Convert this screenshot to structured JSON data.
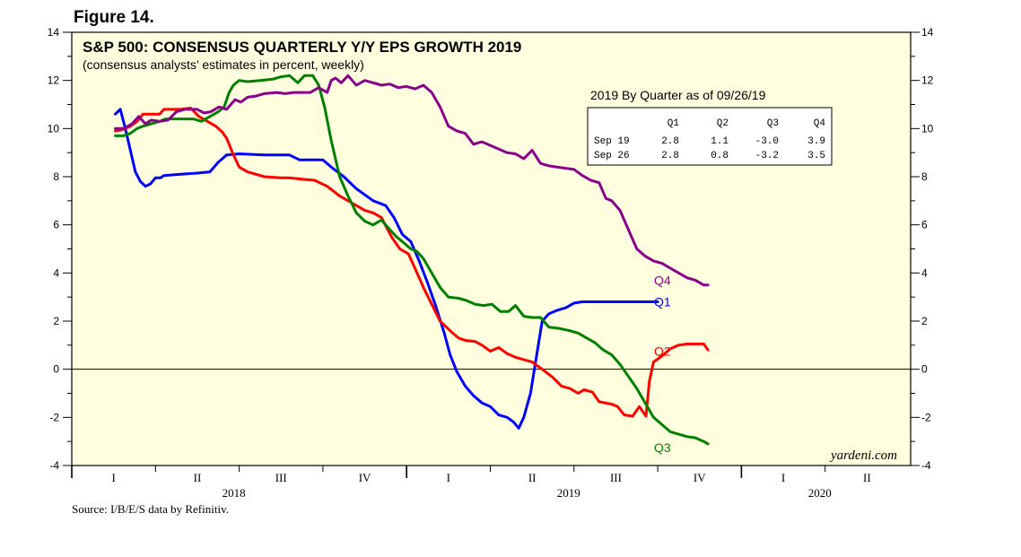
{
  "figure_label": "Figure 14.",
  "source": "Source: I/B/E/S data by Refinitiv.",
  "watermark": "yardeni.com",
  "colors": {
    "plot_bg": "#FFFFE0",
    "q1": "#0000FF",
    "q2": "#FF0000",
    "q3": "#008000",
    "q4": "#8B008B"
  },
  "chart_data": {
    "type": "line",
    "title": "S&P 500: CONSENSUS QUARTERLY Y/Y EPS GROWTH 2019",
    "subtitle": "(consensus analysts’ estimates in percent, weekly)",
    "xlabel": "",
    "ylabel": "",
    "ylim": [
      -4,
      14
    ],
    "yticks": [
      -4,
      -2,
      0,
      2,
      4,
      6,
      8,
      10,
      12,
      14
    ],
    "x_unit": "quarters since 2018 Q1 start",
    "xlim": [
      0,
      9
    ],
    "quarter_labels": [
      "I",
      "II",
      "III",
      "IV",
      "I",
      "II",
      "III",
      "IV",
      "I",
      "II"
    ],
    "year_labels": [
      {
        "label": "2018",
        "x": 2.0
      },
      {
        "label": "2019",
        "x": 6.0
      },
      {
        "label": "2020",
        "x": 9.0
      }
    ],
    "zero_line": true,
    "series": [
      {
        "name": "Q1",
        "color": "#0000FF",
        "points": [
          [
            0.52,
            10.6
          ],
          [
            0.58,
            10.8
          ],
          [
            0.64,
            10.0
          ],
          [
            0.7,
            9.1
          ],
          [
            0.76,
            8.2
          ],
          [
            0.82,
            7.8
          ],
          [
            0.88,
            7.6
          ],
          [
            0.94,
            7.7
          ],
          [
            1.0,
            7.95
          ],
          [
            1.06,
            7.95
          ],
          [
            1.1,
            8.05
          ],
          [
            1.3,
            8.1
          ],
          [
            1.5,
            8.15
          ],
          [
            1.65,
            8.2
          ],
          [
            1.75,
            8.6
          ],
          [
            1.85,
            8.9
          ],
          [
            2.0,
            8.95
          ],
          [
            2.3,
            8.9
          ],
          [
            2.6,
            8.9
          ],
          [
            2.72,
            8.7
          ],
          [
            3.0,
            8.7
          ],
          [
            3.1,
            8.4
          ],
          [
            3.25,
            8.0
          ],
          [
            3.4,
            7.5
          ],
          [
            3.6,
            7.0
          ],
          [
            3.75,
            6.8
          ],
          [
            3.85,
            6.3
          ],
          [
            3.95,
            5.6
          ],
          [
            4.05,
            5.3
          ],
          [
            4.15,
            4.5
          ],
          [
            4.25,
            3.6
          ],
          [
            4.35,
            2.6
          ],
          [
            4.45,
            1.5
          ],
          [
            4.52,
            0.6
          ],
          [
            4.6,
            -0.1
          ],
          [
            4.7,
            -0.7
          ],
          [
            4.8,
            -1.1
          ],
          [
            4.9,
            -1.4
          ],
          [
            5.0,
            -1.55
          ],
          [
            5.1,
            -1.9
          ],
          [
            5.2,
            -2.0
          ],
          [
            5.28,
            -2.2
          ],
          [
            5.34,
            -2.45
          ],
          [
            5.4,
            -2.0
          ],
          [
            5.48,
            -1.0
          ],
          [
            5.55,
            0.5
          ],
          [
            5.62,
            2.0
          ],
          [
            5.7,
            2.3
          ],
          [
            5.8,
            2.45
          ],
          [
            5.9,
            2.55
          ],
          [
            6.0,
            2.75
          ],
          [
            6.1,
            2.8
          ],
          [
            6.4,
            2.8
          ],
          [
            6.8,
            2.8
          ],
          [
            7.0,
            2.8
          ]
        ]
      },
      {
        "name": "Q2",
        "color": "#FF0000",
        "points": [
          [
            0.52,
            9.9
          ],
          [
            0.6,
            9.95
          ],
          [
            0.7,
            10.1
          ],
          [
            0.78,
            10.3
          ],
          [
            0.85,
            10.6
          ],
          [
            0.95,
            10.6
          ],
          [
            1.05,
            10.6
          ],
          [
            1.1,
            10.8
          ],
          [
            1.3,
            10.8
          ],
          [
            1.42,
            10.85
          ],
          [
            1.52,
            10.5
          ],
          [
            1.62,
            10.3
          ],
          [
            1.72,
            10.1
          ],
          [
            1.8,
            9.85
          ],
          [
            1.85,
            9.6
          ],
          [
            1.92,
            9.0
          ],
          [
            2.0,
            8.4
          ],
          [
            2.1,
            8.2
          ],
          [
            2.3,
            8.0
          ],
          [
            2.5,
            7.95
          ],
          [
            2.6,
            7.95
          ],
          [
            2.75,
            7.9
          ],
          [
            2.9,
            7.85
          ],
          [
            3.05,
            7.6
          ],
          [
            3.2,
            7.2
          ],
          [
            3.35,
            6.9
          ],
          [
            3.5,
            6.6
          ],
          [
            3.6,
            6.5
          ],
          [
            3.7,
            6.3
          ],
          [
            3.82,
            5.5
          ],
          [
            3.92,
            5.0
          ],
          [
            4.02,
            4.8
          ],
          [
            4.1,
            4.2
          ],
          [
            4.2,
            3.4
          ],
          [
            4.3,
            2.7
          ],
          [
            4.4,
            2.0
          ],
          [
            4.52,
            1.6
          ],
          [
            4.62,
            1.3
          ],
          [
            4.7,
            1.2
          ],
          [
            4.82,
            1.15
          ],
          [
            4.9,
            1.0
          ],
          [
            5.0,
            0.75
          ],
          [
            5.1,
            0.9
          ],
          [
            5.2,
            0.65
          ],
          [
            5.3,
            0.5
          ],
          [
            5.4,
            0.4
          ],
          [
            5.5,
            0.3
          ],
          [
            5.62,
            0.0
          ],
          [
            5.75,
            -0.35
          ],
          [
            5.85,
            -0.7
          ],
          [
            5.95,
            -0.8
          ],
          [
            6.05,
            -1.0
          ],
          [
            6.12,
            -0.85
          ],
          [
            6.22,
            -0.95
          ],
          [
            6.3,
            -1.35
          ],
          [
            6.45,
            -1.45
          ],
          [
            6.52,
            -1.55
          ],
          [
            6.6,
            -1.9
          ],
          [
            6.7,
            -1.95
          ],
          [
            6.78,
            -1.55
          ],
          [
            6.86,
            -1.95
          ],
          [
            6.9,
            -0.5
          ],
          [
            6.95,
            0.3
          ],
          [
            7.05,
            0.55
          ],
          [
            7.15,
            0.85
          ],
          [
            7.25,
            1.0
          ],
          [
            7.35,
            1.05
          ],
          [
            7.45,
            1.05
          ],
          [
            7.55,
            1.05
          ],
          [
            7.6,
            0.8
          ]
        ]
      },
      {
        "name": "Q3",
        "color": "#008000",
        "points": [
          [
            0.52,
            9.7
          ],
          [
            0.62,
            9.7
          ],
          [
            0.7,
            9.8
          ],
          [
            0.78,
            10.0
          ],
          [
            0.85,
            10.1
          ],
          [
            0.95,
            10.2
          ],
          [
            1.05,
            10.3
          ],
          [
            1.12,
            10.4
          ],
          [
            1.3,
            10.4
          ],
          [
            1.45,
            10.4
          ],
          [
            1.55,
            10.3
          ],
          [
            1.65,
            10.5
          ],
          [
            1.75,
            10.7
          ],
          [
            1.82,
            10.9
          ],
          [
            1.88,
            11.5
          ],
          [
            1.93,
            11.8
          ],
          [
            2.0,
            12.0
          ],
          [
            2.1,
            11.95
          ],
          [
            2.25,
            12.0
          ],
          [
            2.4,
            12.05
          ],
          [
            2.5,
            12.15
          ],
          [
            2.6,
            12.2
          ],
          [
            2.7,
            11.9
          ],
          [
            2.78,
            12.2
          ],
          [
            2.88,
            12.2
          ],
          [
            2.95,
            11.8
          ],
          [
            3.02,
            10.9
          ],
          [
            3.1,
            9.5
          ],
          [
            3.2,
            8.0
          ],
          [
            3.3,
            7.2
          ],
          [
            3.4,
            6.5
          ],
          [
            3.5,
            6.15
          ],
          [
            3.6,
            6.0
          ],
          [
            3.7,
            6.2
          ],
          [
            3.8,
            5.8
          ],
          [
            3.88,
            5.5
          ],
          [
            3.95,
            5.3
          ],
          [
            4.05,
            5.0
          ],
          [
            4.12,
            4.9
          ],
          [
            4.2,
            4.6
          ],
          [
            4.3,
            4.0
          ],
          [
            4.4,
            3.4
          ],
          [
            4.5,
            3.0
          ],
          [
            4.62,
            2.95
          ],
          [
            4.72,
            2.85
          ],
          [
            4.82,
            2.7
          ],
          [
            4.92,
            2.65
          ],
          [
            5.02,
            2.7
          ],
          [
            5.12,
            2.4
          ],
          [
            5.22,
            2.4
          ],
          [
            5.3,
            2.65
          ],
          [
            5.4,
            2.2
          ],
          [
            5.5,
            2.15
          ],
          [
            5.6,
            2.15
          ],
          [
            5.7,
            1.75
          ],
          [
            5.82,
            1.7
          ],
          [
            5.95,
            1.6
          ],
          [
            6.05,
            1.5
          ],
          [
            6.15,
            1.3
          ],
          [
            6.25,
            1.1
          ],
          [
            6.35,
            0.8
          ],
          [
            6.45,
            0.6
          ],
          [
            6.55,
            0.2
          ],
          [
            6.65,
            -0.3
          ],
          [
            6.75,
            -0.8
          ],
          [
            6.85,
            -1.4
          ],
          [
            6.95,
            -2.0
          ],
          [
            7.05,
            -2.3
          ],
          [
            7.15,
            -2.6
          ],
          [
            7.25,
            -2.7
          ],
          [
            7.35,
            -2.8
          ],
          [
            7.45,
            -2.85
          ],
          [
            7.55,
            -3.0
          ],
          [
            7.6,
            -3.1
          ]
        ]
      },
      {
        "name": "Q4",
        "color": "#8B008B",
        "points": [
          [
            0.52,
            10.0
          ],
          [
            0.62,
            10.0
          ],
          [
            0.72,
            10.2
          ],
          [
            0.8,
            10.5
          ],
          [
            0.88,
            10.2
          ],
          [
            0.95,
            10.35
          ],
          [
            1.05,
            10.3
          ],
          [
            1.15,
            10.35
          ],
          [
            1.25,
            10.7
          ],
          [
            1.35,
            10.8
          ],
          [
            1.5,
            10.8
          ],
          [
            1.58,
            10.65
          ],
          [
            1.66,
            10.7
          ],
          [
            1.76,
            10.9
          ],
          [
            1.85,
            10.8
          ],
          [
            1.95,
            11.2
          ],
          [
            2.02,
            11.1
          ],
          [
            2.1,
            11.3
          ],
          [
            2.2,
            11.35
          ],
          [
            2.3,
            11.45
          ],
          [
            2.45,
            11.5
          ],
          [
            2.55,
            11.45
          ],
          [
            2.65,
            11.5
          ],
          [
            2.75,
            11.5
          ],
          [
            2.85,
            11.5
          ],
          [
            2.95,
            11.7
          ],
          [
            3.05,
            11.5
          ],
          [
            3.1,
            12.0
          ],
          [
            3.15,
            12.1
          ],
          [
            3.22,
            11.9
          ],
          [
            3.3,
            12.2
          ],
          [
            3.4,
            11.8
          ],
          [
            3.5,
            12.0
          ],
          [
            3.6,
            11.9
          ],
          [
            3.7,
            11.8
          ],
          [
            3.8,
            11.85
          ],
          [
            3.9,
            11.7
          ],
          [
            4.0,
            11.75
          ],
          [
            4.1,
            11.65
          ],
          [
            4.2,
            11.8
          ],
          [
            4.3,
            11.5
          ],
          [
            4.4,
            10.9
          ],
          [
            4.5,
            10.1
          ],
          [
            4.6,
            9.9
          ],
          [
            4.7,
            9.8
          ],
          [
            4.8,
            9.35
          ],
          [
            4.9,
            9.45
          ],
          [
            5.0,
            9.3
          ],
          [
            5.1,
            9.15
          ],
          [
            5.2,
            9.0
          ],
          [
            5.3,
            8.95
          ],
          [
            5.4,
            8.75
          ],
          [
            5.5,
            9.1
          ],
          [
            5.6,
            8.55
          ],
          [
            5.7,
            8.45
          ],
          [
            5.8,
            8.4
          ],
          [
            5.9,
            8.35
          ],
          [
            6.0,
            8.3
          ],
          [
            6.1,
            8.05
          ],
          [
            6.2,
            7.85
          ],
          [
            6.3,
            7.75
          ],
          [
            6.38,
            7.1
          ],
          [
            6.45,
            7.0
          ],
          [
            6.55,
            6.6
          ],
          [
            6.65,
            5.8
          ],
          [
            6.75,
            5.0
          ],
          [
            6.85,
            4.7
          ],
          [
            6.95,
            4.5
          ],
          [
            7.05,
            4.4
          ],
          [
            7.15,
            4.2
          ],
          [
            7.25,
            4.0
          ],
          [
            7.35,
            3.8
          ],
          [
            7.45,
            3.7
          ],
          [
            7.55,
            3.5
          ],
          [
            7.6,
            3.5
          ]
        ]
      }
    ],
    "end_labels": [
      {
        "name": "Q4",
        "value": 3.7
      },
      {
        "name": "Q1",
        "value": 2.8
      },
      {
        "name": "Q2",
        "value": 0.75
      },
      {
        "name": "Q3",
        "value": -3.25
      }
    ],
    "table": {
      "title": "2019 By Quarter as of 09/26/19",
      "columns": [
        "",
        "Q1",
        "Q2",
        "Q3",
        "Q4"
      ],
      "rows": [
        [
          "Sep 19",
          "2.8",
          "1.1",
          "-3.0",
          "3.9"
        ],
        [
          "Sep 26",
          "2.8",
          "0.8",
          "-3.2",
          "3.5"
        ]
      ]
    }
  }
}
